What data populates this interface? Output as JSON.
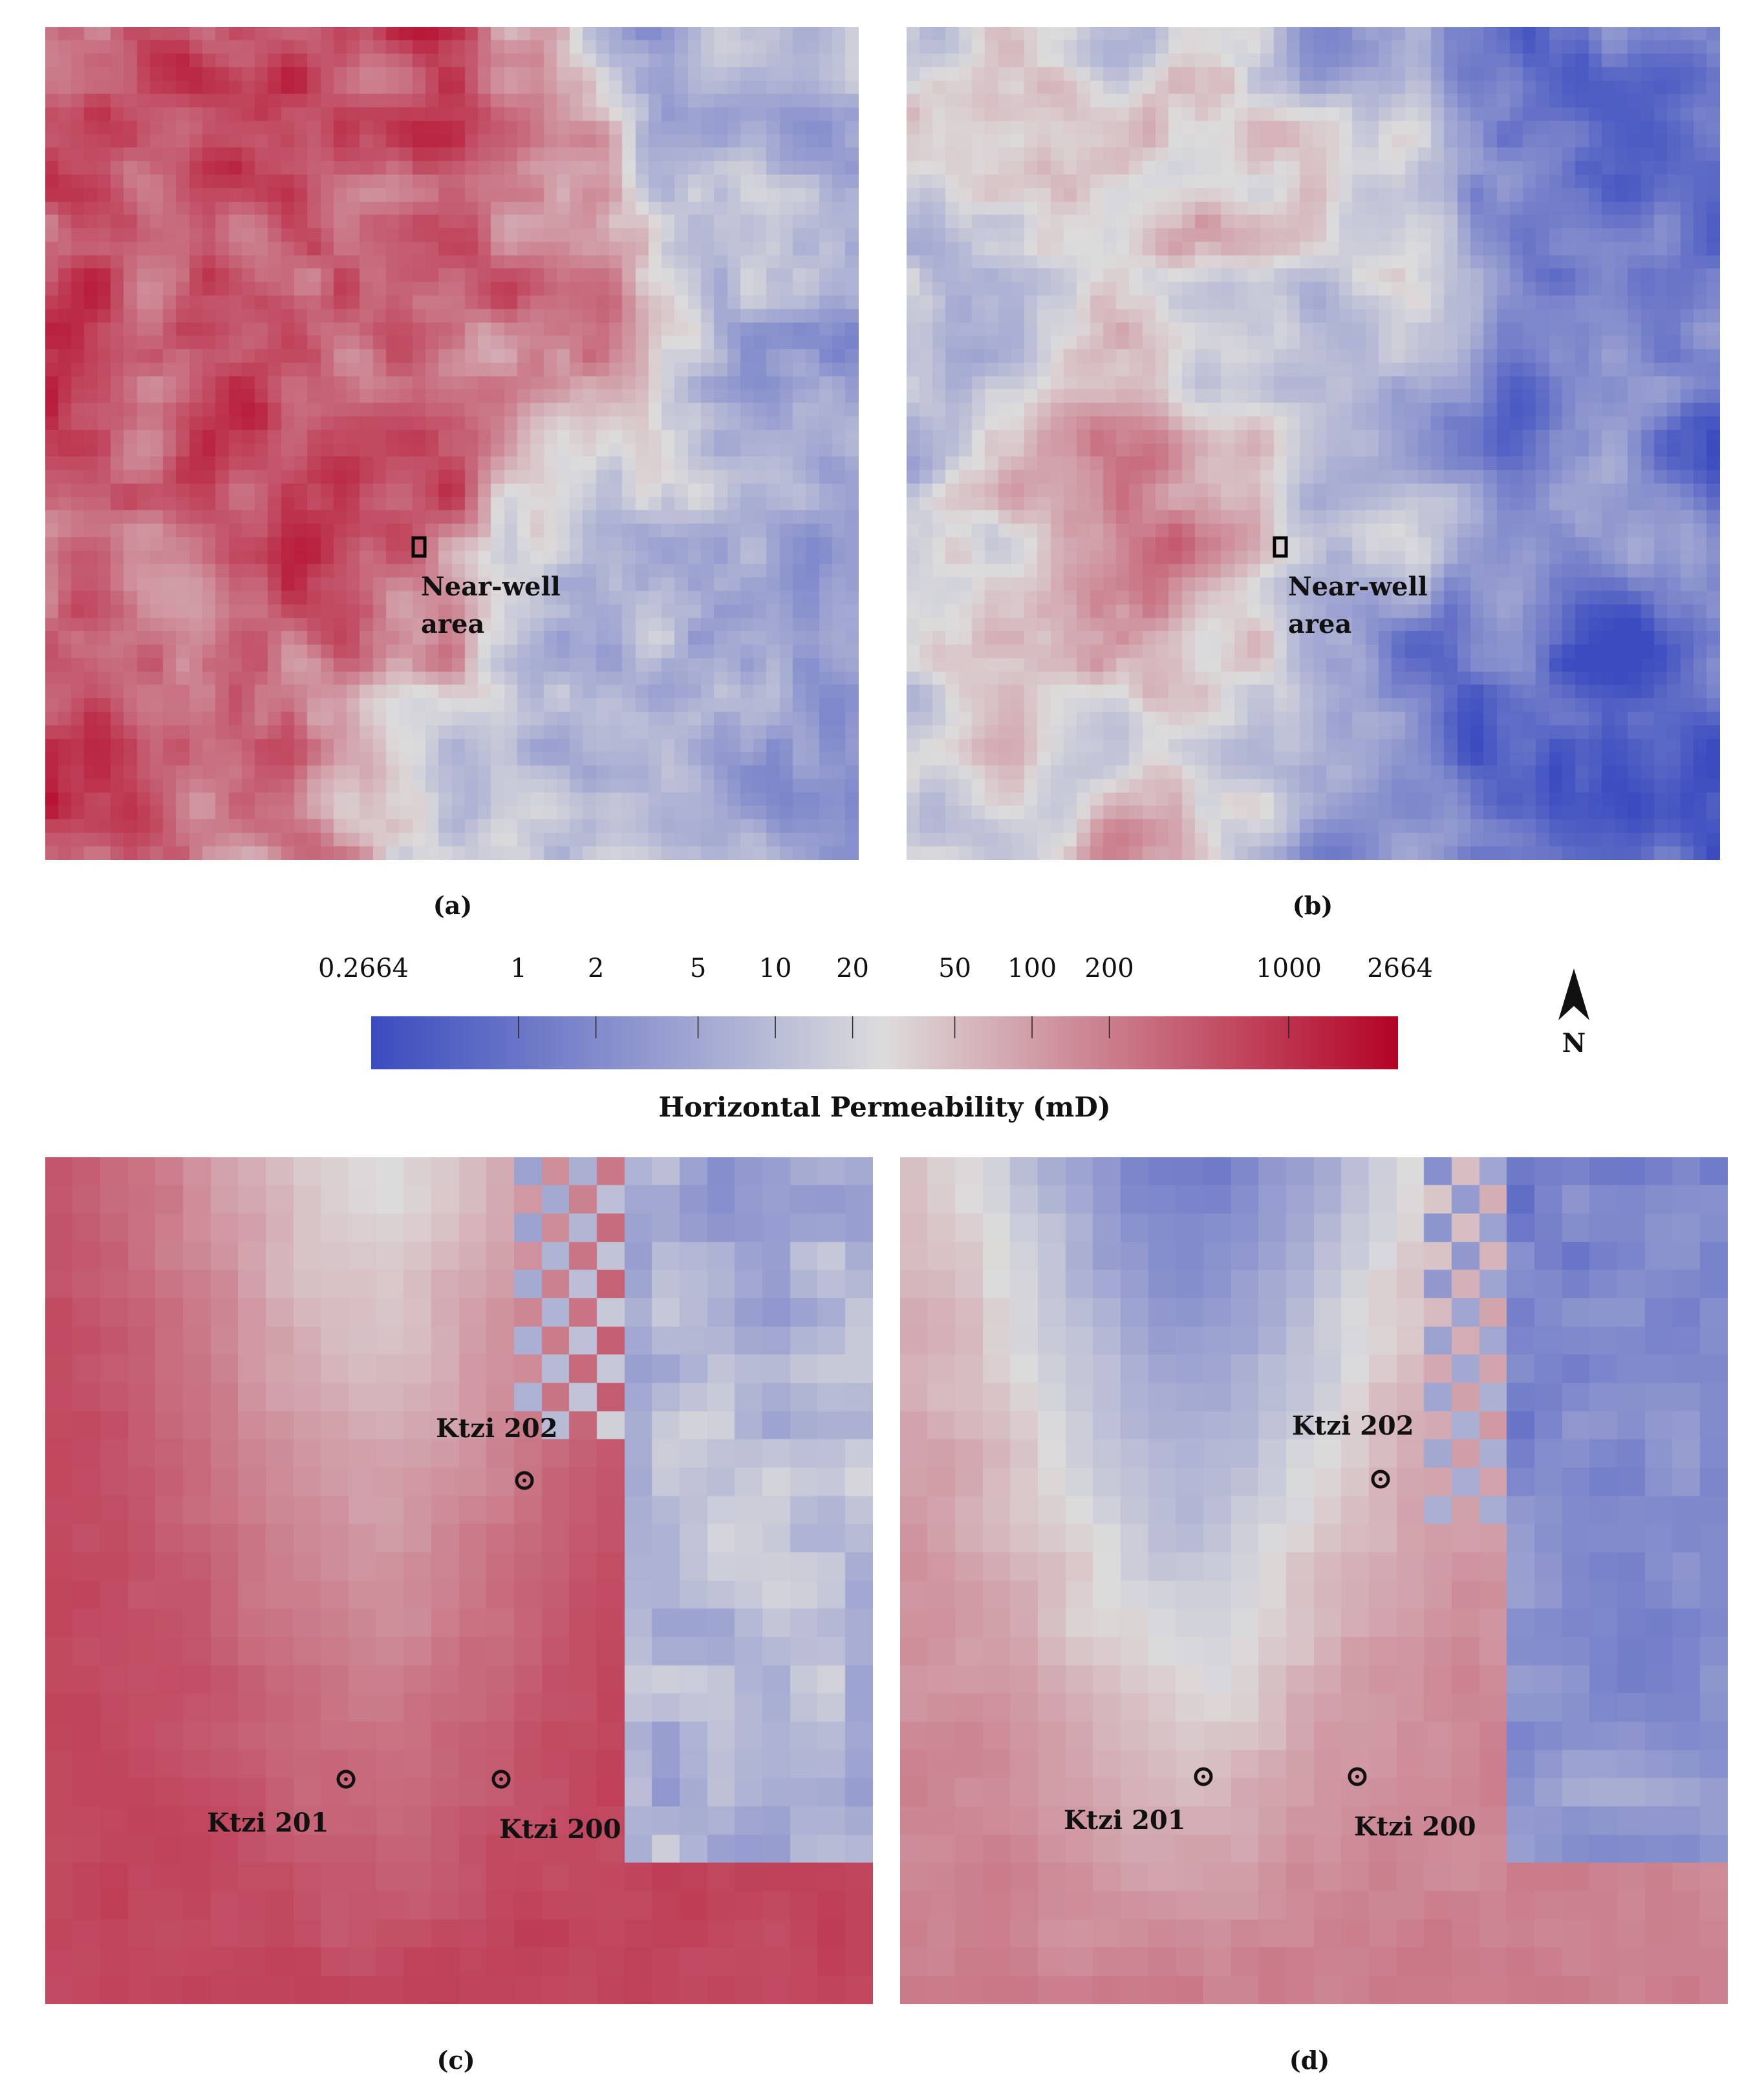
{
  "panels": [
    {
      "id": "a",
      "caption": "(a)",
      "labels": [
        "Near-well",
        "area"
      ]
    },
    {
      "id": "b",
      "caption": "(b)",
      "labels": [
        "Near-well",
        "area"
      ]
    },
    {
      "id": "c",
      "caption": "(c)",
      "wells": [
        "Ktzi 202",
        "Ktzi 201",
        "Ktzi 200"
      ]
    },
    {
      "id": "d",
      "caption": "(d)",
      "wells": [
        "Ktzi 202",
        "Ktzi 201",
        "Ktzi 200"
      ]
    }
  ],
  "colorbar": {
    "title": "Horizontal Permeability (mD)",
    "min": 0.2664,
    "max": 2664,
    "scale": "log",
    "colormap": "cool-warm",
    "colors": [
      "#3b4cc0",
      "#dddcdc",
      "#b40426"
    ],
    "ticks": [
      {
        "value": 0.2664,
        "label": "0.2664"
      },
      {
        "value": 1,
        "label": "1"
      },
      {
        "value": 2,
        "label": "2"
      },
      {
        "value": 5,
        "label": "5"
      },
      {
        "value": 10,
        "label": "10"
      },
      {
        "value": 20,
        "label": "20"
      },
      {
        "value": 50,
        "label": "50"
      },
      {
        "value": 100,
        "label": "100"
      },
      {
        "value": 200,
        "label": "200"
      },
      {
        "value": 1000,
        "label": "1000"
      },
      {
        "value": 2664,
        "label": "2664"
      }
    ]
  },
  "north_arrow": {
    "label": "N",
    "icon": "north-arrow-icon"
  }
}
